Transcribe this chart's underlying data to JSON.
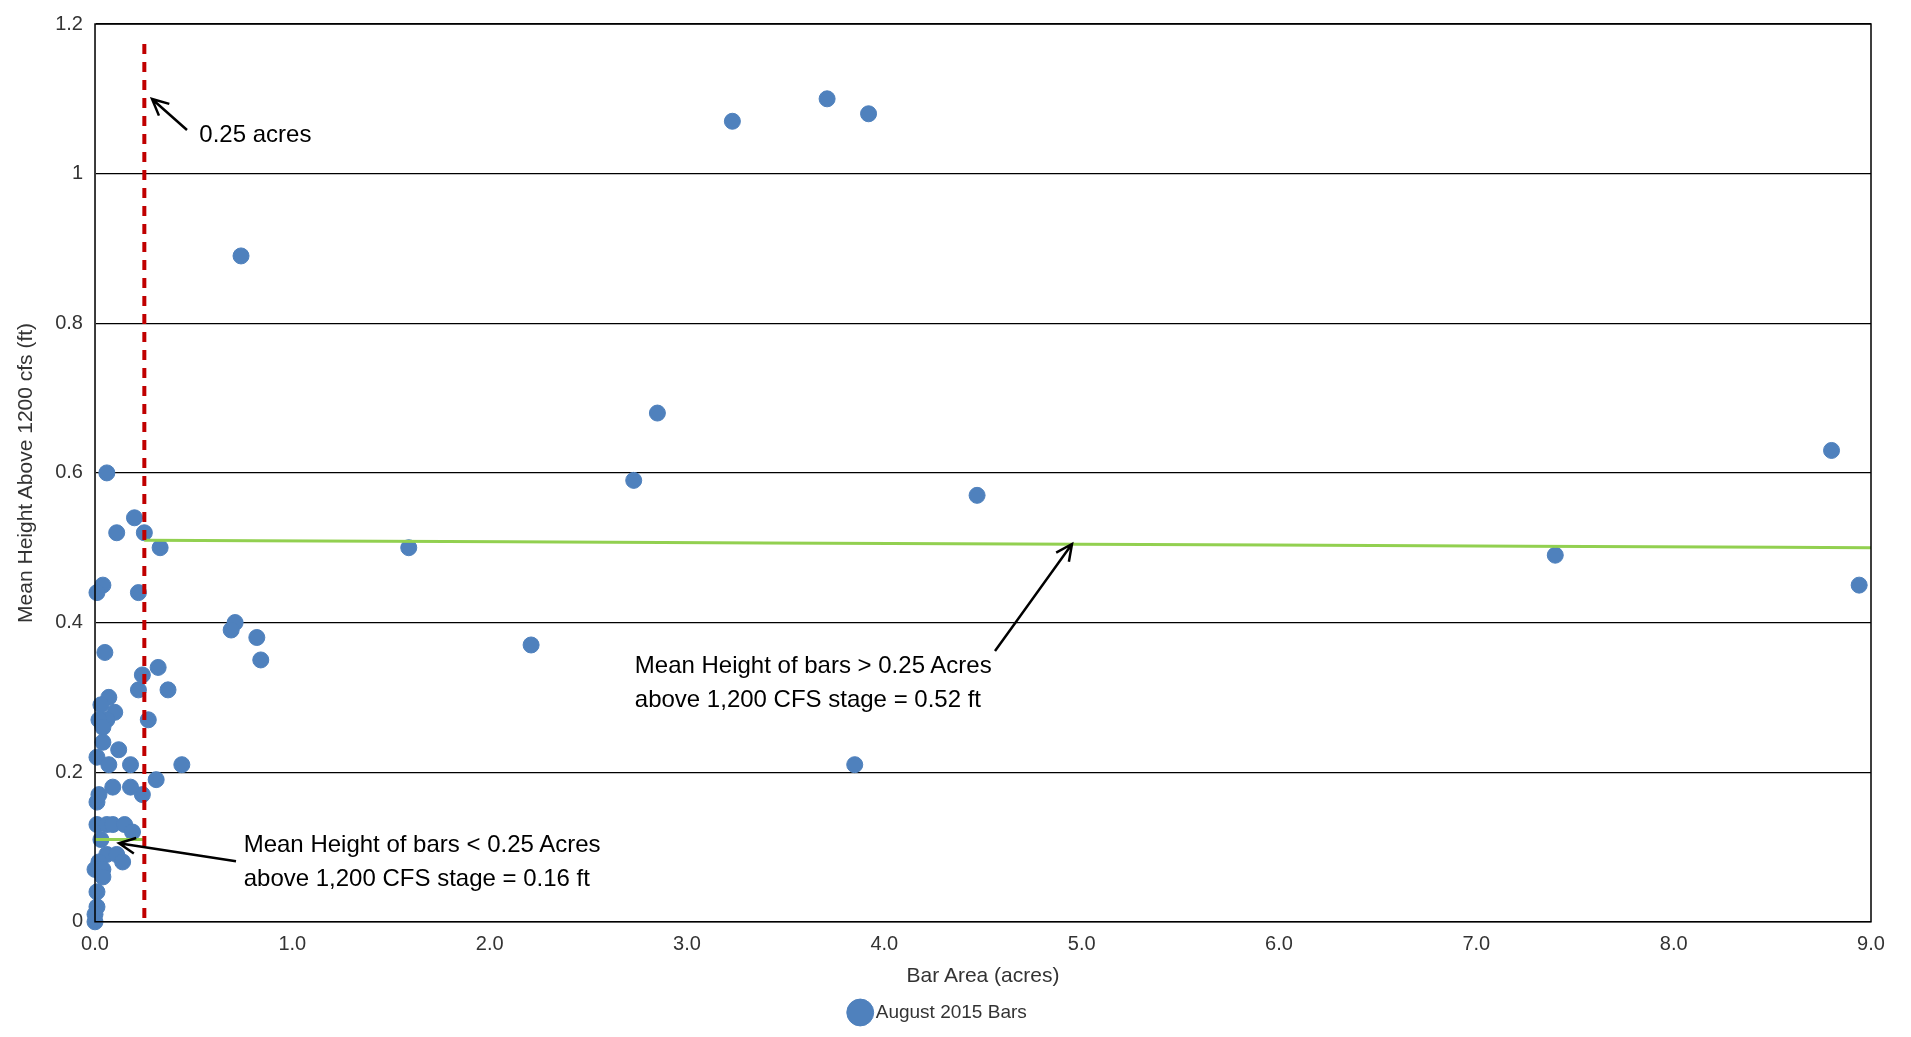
{
  "chart_data": {
    "type": "scatter",
    "xlabel": "Bar Area (acres)",
    "ylabel": "Mean Height Above 1200 cfs (ft)",
    "xlim": [
      0,
      9
    ],
    "ylim": [
      0,
      1.2
    ],
    "xticks": [
      {
        "value": 0,
        "label": "0.0"
      },
      {
        "value": 1,
        "label": "1.0"
      },
      {
        "value": 2,
        "label": "2.0"
      },
      {
        "value": 3,
        "label": "3.0"
      },
      {
        "value": 4,
        "label": "4.0"
      },
      {
        "value": 5,
        "label": "5.0"
      },
      {
        "value": 6,
        "label": "6.0"
      },
      {
        "value": 7,
        "label": "7.0"
      },
      {
        "value": 8,
        "label": "8.0"
      },
      {
        "value": 9,
        "label": "9.0"
      }
    ],
    "yticks": [
      0,
      0.2,
      0.4,
      0.6,
      0.8,
      1,
      1.2
    ],
    "grid": "y",
    "legend": "bottom",
    "marker": "circle",
    "series": [
      {
        "name": "August 2015 Bars",
        "color": "#4f81bd",
        "x": [
          0.74,
          3.23,
          3.71,
          3.92,
          2.85,
          2.73,
          4.47,
          8.8,
          8.94,
          7.4,
          1.59,
          2.21,
          3.85,
          0.06,
          0.11,
          0.2,
          0.25,
          0.33,
          0.04,
          0.01,
          0.22,
          0.05,
          0.71,
          0.69,
          0.82,
          0.84,
          0.32,
          0.24,
          0.37,
          0.22,
          0.27,
          0.44,
          0.31,
          0.07,
          0.03,
          0.1,
          0.06,
          0.02,
          0.04,
          0.04,
          0.12,
          0.01,
          0.07,
          0.18,
          0.24,
          0.09,
          0.18,
          0.01,
          0.02,
          0.01,
          0.06,
          0.09,
          0.15,
          0.19,
          0.03,
          0.06,
          0.11,
          0.14,
          0.02,
          0.0,
          0.04,
          0.04,
          0.01,
          0.01,
          0.0,
          0.0
        ],
        "values": [
          0.89,
          1.07,
          1.1,
          1.08,
          0.68,
          0.59,
          0.57,
          0.63,
          0.45,
          0.49,
          0.5,
          0.37,
          0.21,
          0.6,
          0.52,
          0.54,
          0.52,
          0.5,
          0.45,
          0.44,
          0.44,
          0.36,
          0.4,
          0.39,
          0.38,
          0.35,
          0.34,
          0.33,
          0.31,
          0.31,
          0.27,
          0.21,
          0.19,
          0.3,
          0.29,
          0.28,
          0.27,
          0.27,
          0.26,
          0.24,
          0.23,
          0.22,
          0.21,
          0.21,
          0.17,
          0.18,
          0.18,
          0.16,
          0.17,
          0.13,
          0.13,
          0.13,
          0.13,
          0.12,
          0.11,
          0.09,
          0.09,
          0.08,
          0.08,
          0.07,
          0.07,
          0.06,
          0.04,
          0.02,
          0.01,
          0.0
        ]
      },
      {
        "type": "line",
        "marker": "none",
        "color": "#92d050",
        "x": [
          0.25,
          9.0
        ],
        "values": [
          0.51,
          0.5
        ]
      },
      {
        "type": "line",
        "marker": "none",
        "color": "#92d050",
        "x": [
          0.0,
          0.25
        ],
        "values": [
          0.11,
          0.11
        ]
      }
    ],
    "ref_lines": [
      {
        "axis": "x",
        "value": 0.25,
        "color": "#c00000",
        "line_style": "dashed"
      }
    ],
    "annotations": [
      {
        "text": "0.25 acres",
        "x": 0.25,
        "y": 1.1
      },
      {
        "text": "Mean Height of bars > 0.25 Acres\nabove 1,200 CFS stage = 0.52 ft",
        "x": 4.95,
        "y": 0.505
      },
      {
        "text": "Mean Height of bars < 0.25 Acres\nabove 1,200 CFS stage = 0.16 ft",
        "x": 0.12,
        "y": 0.105
      }
    ]
  }
}
